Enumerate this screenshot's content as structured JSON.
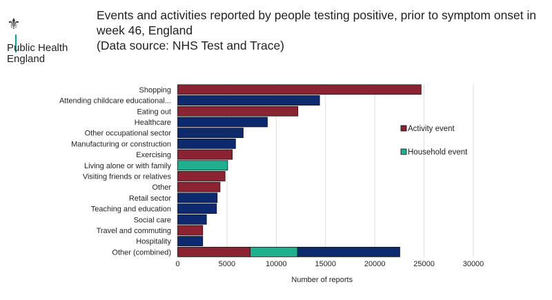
{
  "header": {
    "organisation": "Public Health England",
    "title": "Events and activities reported by people testing positive, prior to symptom onset in week 46, England\n(Data source: NHS Test and Trace)"
  },
  "chart_data": {
    "type": "bar",
    "orientation": "horizontal",
    "stacked": true,
    "categories": [
      "Shopping",
      "Attending childcare educational...",
      "Eating out",
      "Healthcare",
      "Other occupational sector",
      "Manufacturing or construction",
      "Exercising",
      "Living alone or with family",
      "Visiting friends or relatives",
      "Other",
      "Retail sector",
      "Teaching and education",
      "Social care",
      "Travel and commuting",
      "Hospitality",
      "Other (combined)"
    ],
    "series": [
      {
        "name": "Activity event",
        "color": "#8b2332",
        "values": [
          24700,
          0,
          12200,
          0,
          0,
          0,
          5540,
          0,
          4810,
          4300,
          0,
          0,
          0,
          2540,
          0,
          7350
        ]
      },
      {
        "name": "Household event",
        "color": "#1fb18f",
        "values": [
          0,
          0,
          0,
          0,
          0,
          0,
          0,
          5070,
          0,
          0,
          0,
          0,
          0,
          0,
          0,
          4810
        ]
      },
      {
        "name": "",
        "color": "#0d2a6e",
        "values": [
          0,
          14400,
          0,
          9100,
          6650,
          5870,
          0,
          0,
          0,
          0,
          4010,
          3940,
          2920,
          0,
          2540,
          10380
        ]
      }
    ],
    "xlabel": "Number of reports",
    "xlim": [
      0,
      30000
    ],
    "xticks": [
      "0",
      "5000",
      "10000",
      "15000",
      "20000",
      "25000",
      "30000"
    ],
    "grid": true,
    "legend_position": "right"
  }
}
